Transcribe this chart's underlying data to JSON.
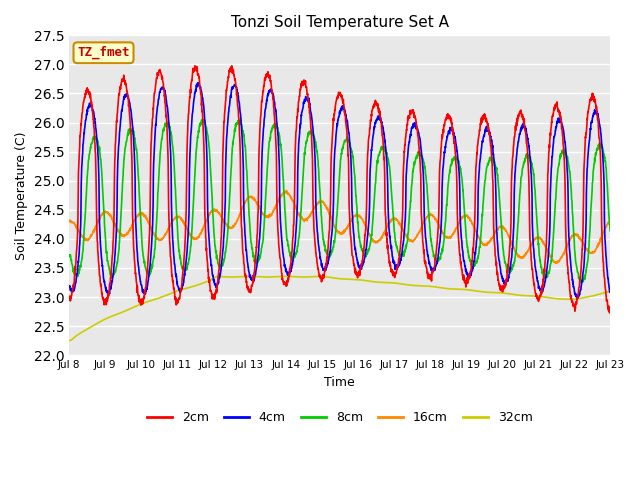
{
  "title": "Tonzi Soil Temperature Set A",
  "xlabel": "Time",
  "ylabel": "Soil Temperature (C)",
  "annotation": "TZ_fmet",
  "ylim": [
    22.0,
    27.5
  ],
  "yticks": [
    22.0,
    22.5,
    23.0,
    23.5,
    24.0,
    24.5,
    25.0,
    25.5,
    26.0,
    26.5,
    27.0,
    27.5
  ],
  "xtick_labels": [
    "Jul 8",
    "Jul 9",
    "Jul 10",
    "Jul 11",
    "Jul 12",
    "Jul 13",
    "Jul 14",
    "Jul 15",
    "Jul 16",
    "Jul 17",
    "Jul 18",
    "Jul 19",
    "Jul 20",
    "Jul 21",
    "Jul 22",
    "Jul 23"
  ],
  "colors": {
    "2cm": "#ff0000",
    "4cm": "#0000ff",
    "8cm": "#00cc00",
    "16cm": "#ff8800",
    "32cm": "#cccc00"
  },
  "background_color": "#e8e8e8",
  "annotation_bg": "#ffffcc",
  "annotation_border": "#cc8800",
  "grid_color": "#ffffff"
}
